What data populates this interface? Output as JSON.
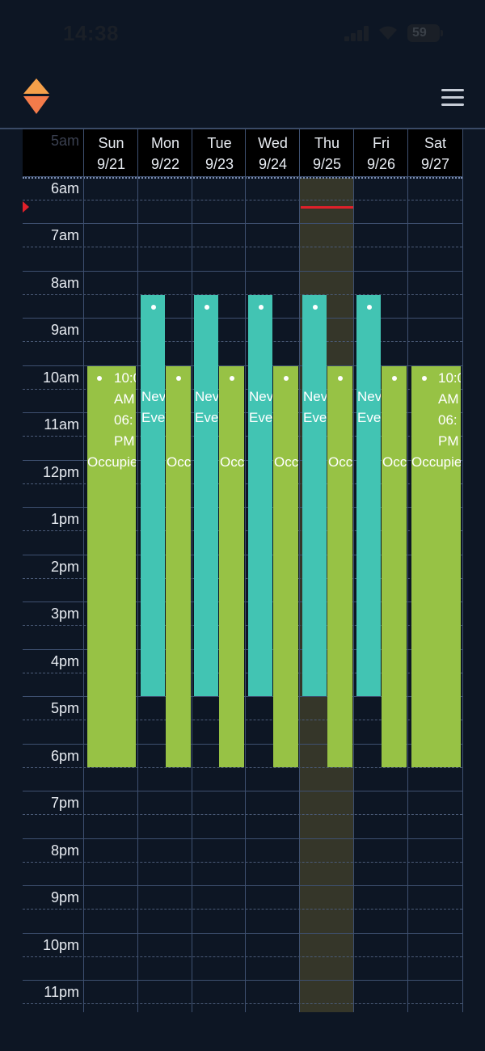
{
  "status_bar": {
    "time": "14:38",
    "battery": "59"
  },
  "header": {
    "logo_icon": "diamond-logo-icon",
    "menu_icon": "hamburger-menu-icon"
  },
  "calendar": {
    "days": [
      {
        "name": "Sun",
        "date": "9/21"
      },
      {
        "name": "Mon",
        "date": "9/22"
      },
      {
        "name": "Tue",
        "date": "9/23"
      },
      {
        "name": "Wed",
        "date": "9/24"
      },
      {
        "name": "Thu",
        "date": "9/25"
      },
      {
        "name": "Fri",
        "date": "9/26"
      },
      {
        "name": "Sat",
        "date": "9/27"
      }
    ],
    "today_index": 4,
    "hours": [
      "5am",
      "6am",
      "7am",
      "8am",
      "9am",
      "10am",
      "11am",
      "12pm",
      "1pm",
      "2pm",
      "3pm",
      "4pm",
      "5pm",
      "6pm",
      "7pm",
      "8pm",
      "9pm",
      "10pm",
      "11pm"
    ],
    "colors": {
      "occupied": "#97c245",
      "new_event": "#42c4b3",
      "today": "#353629",
      "now": "#e0202a"
    },
    "events": {
      "sun_occupied": {
        "time_start": "10:0",
        "ampm_start": "AM",
        "time_end": "06:",
        "ampm_end": "PM",
        "title": "Occupie"
      },
      "sat_occupied": {
        "time_start": "10:0",
        "ampm_start": "AM",
        "time_end": "06:",
        "ampm_end": "PM",
        "title": "Occupie"
      },
      "new_event": {
        "line1": "Nev",
        "line2": "Eve"
      },
      "occupied_narrow": {
        "title": "Occ"
      }
    }
  }
}
